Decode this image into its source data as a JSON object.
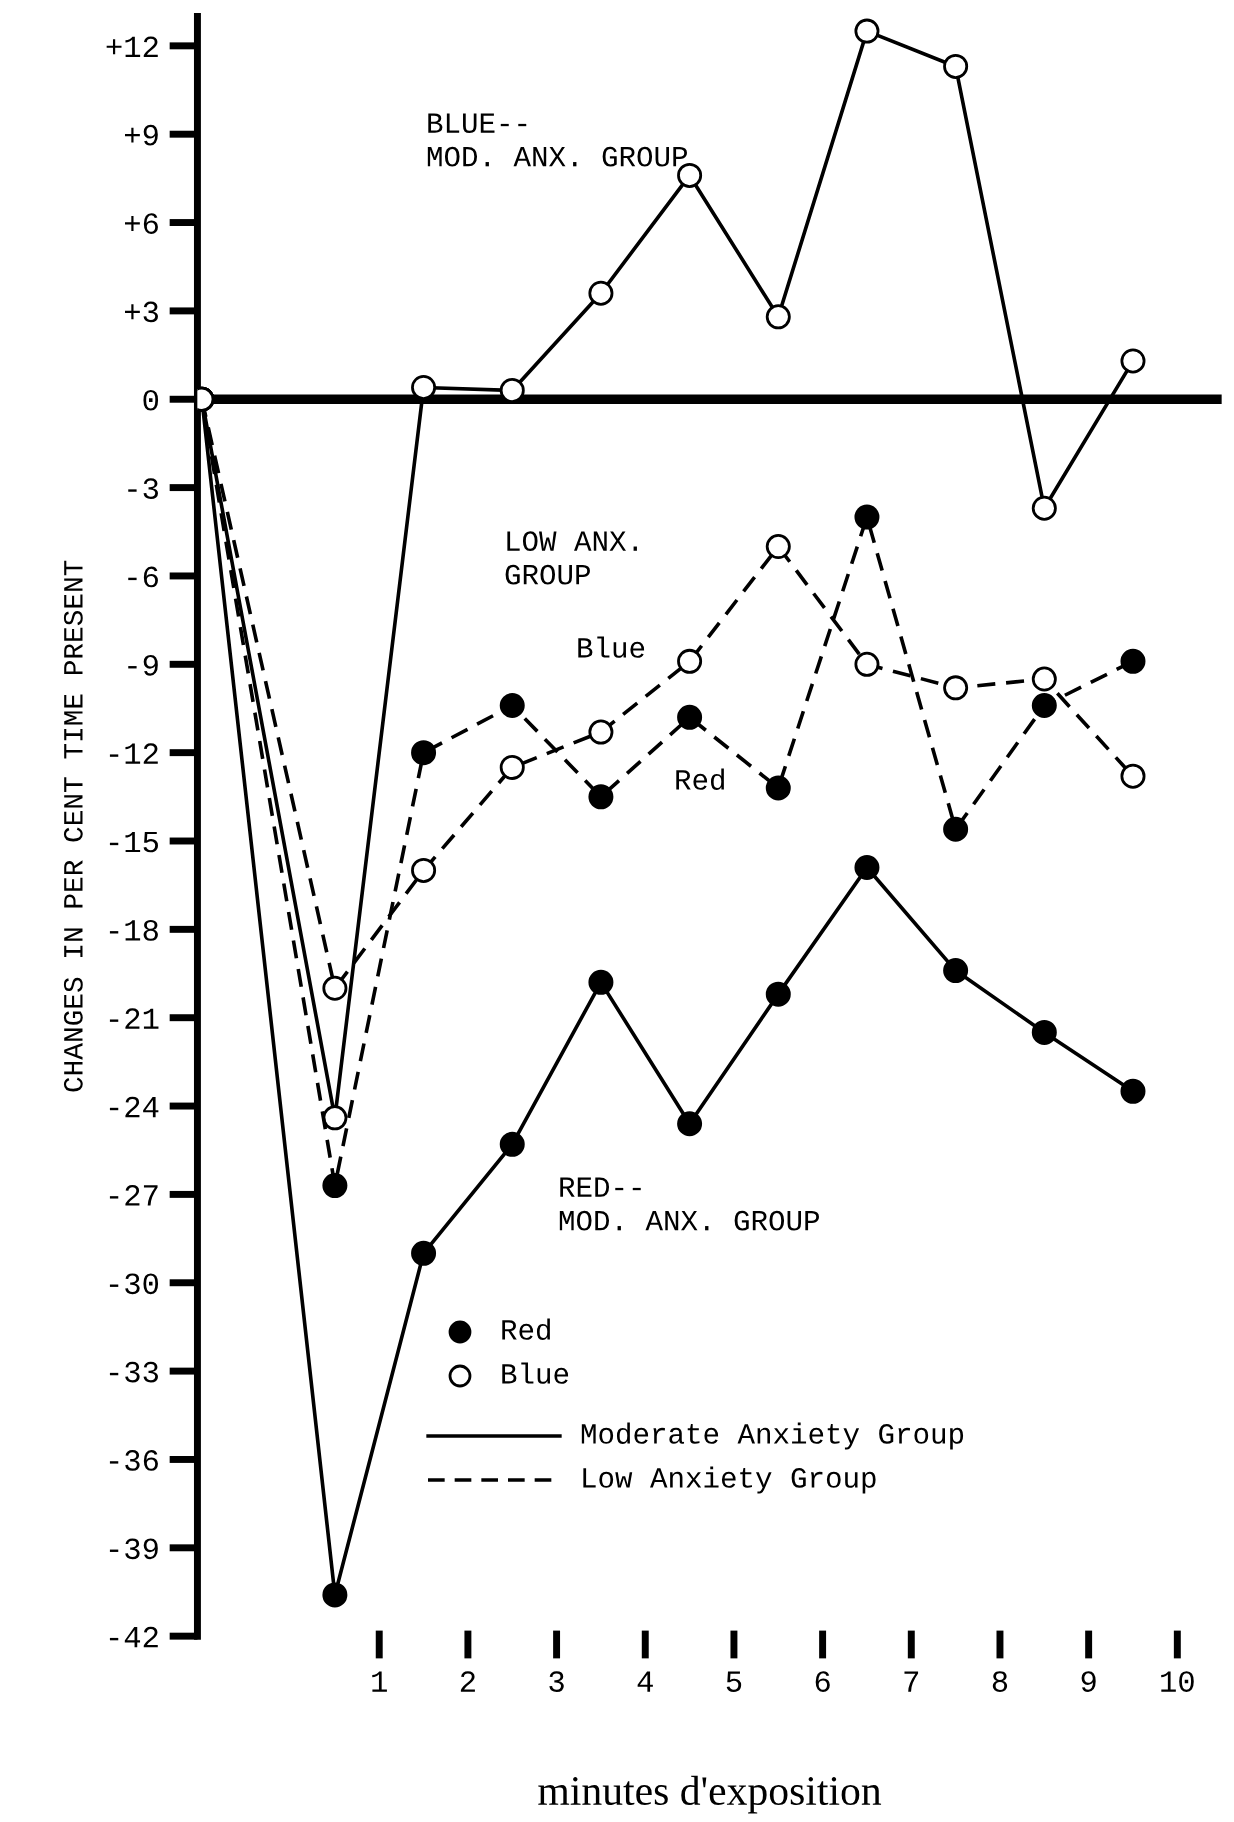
{
  "chart_data": {
    "type": "line",
    "xlabel": "minutes d'exposition",
    "ylabel": "CHANGES IN PER CENT TIME PRESENT",
    "x": [
      -1,
      0.5,
      1.5,
      2.5,
      3.5,
      4.5,
      5.5,
      6.5,
      7.5,
      8.5,
      9.5
    ],
    "series": [
      {
        "color": "#000000",
        "marker": "circle",
        "line_style": "solid",
        "values": [
          0,
          -40.6,
          -29.0,
          -25.3,
          -19.8,
          -24.6,
          -20.2,
          -15.9,
          -19.4,
          -21.5,
          -23.5
        ]
      },
      {
        "color": "#000000",
        "marker": "circle_open",
        "line_style": "solid",
        "values": [
          0,
          -24.4,
          0.4,
          0.3,
          3.6,
          7.6,
          2.8,
          12.5,
          11.3,
          -3.7,
          1.3
        ]
      },
      {
        "color": "#000000",
        "marker": "circle",
        "line_style": "dashed",
        "values": [
          0,
          -26.7,
          -12.0,
          -10.4,
          -13.5,
          -10.8,
          -13.2,
          -4.0,
          -14.6,
          -10.4,
          -8.9
        ]
      },
      {
        "color": "#000000",
        "marker": "circle_open",
        "line_style": "dashed",
        "values": [
          0,
          -20.0,
          -16.0,
          -12.5,
          -11.3,
          -8.9,
          -5.0,
          -9.0,
          -9.8,
          -9.5,
          -12.8
        ]
      }
    ],
    "xlim": [
      -1.05,
      10.5
    ],
    "ylim": [
      -42,
      13
    ],
    "xticks": [
      1,
      2,
      3,
      4,
      5,
      6,
      7,
      8,
      9,
      10
    ],
    "yticks": [
      {
        "value": 12,
        "label": "+12"
      },
      {
        "value": 9,
        "label": "+9"
      },
      {
        "value": 6,
        "label": "+6"
      },
      {
        "value": 3,
        "label": "+3"
      },
      0,
      -3,
      -6,
      -9,
      -12,
      -15,
      -18,
      -21,
      -24,
      -27,
      -30,
      -33,
      -36,
      -39,
      -42
    ],
    "ref_lines": [
      {
        "axis": "y",
        "value": 0,
        "color": "#000000",
        "line_style": "solid"
      }
    ],
    "annotations": [
      "BLUE--\nMOD. ANX. GROUP",
      "LOW ANX.\nGROUP",
      "Blue",
      "Red",
      "RED--\nMOD. ANX. GROUP",
      "Red",
      "Blue",
      "Moderate Anxiety Group",
      "Low Anxiety Group"
    ],
    "grid": false
  }
}
